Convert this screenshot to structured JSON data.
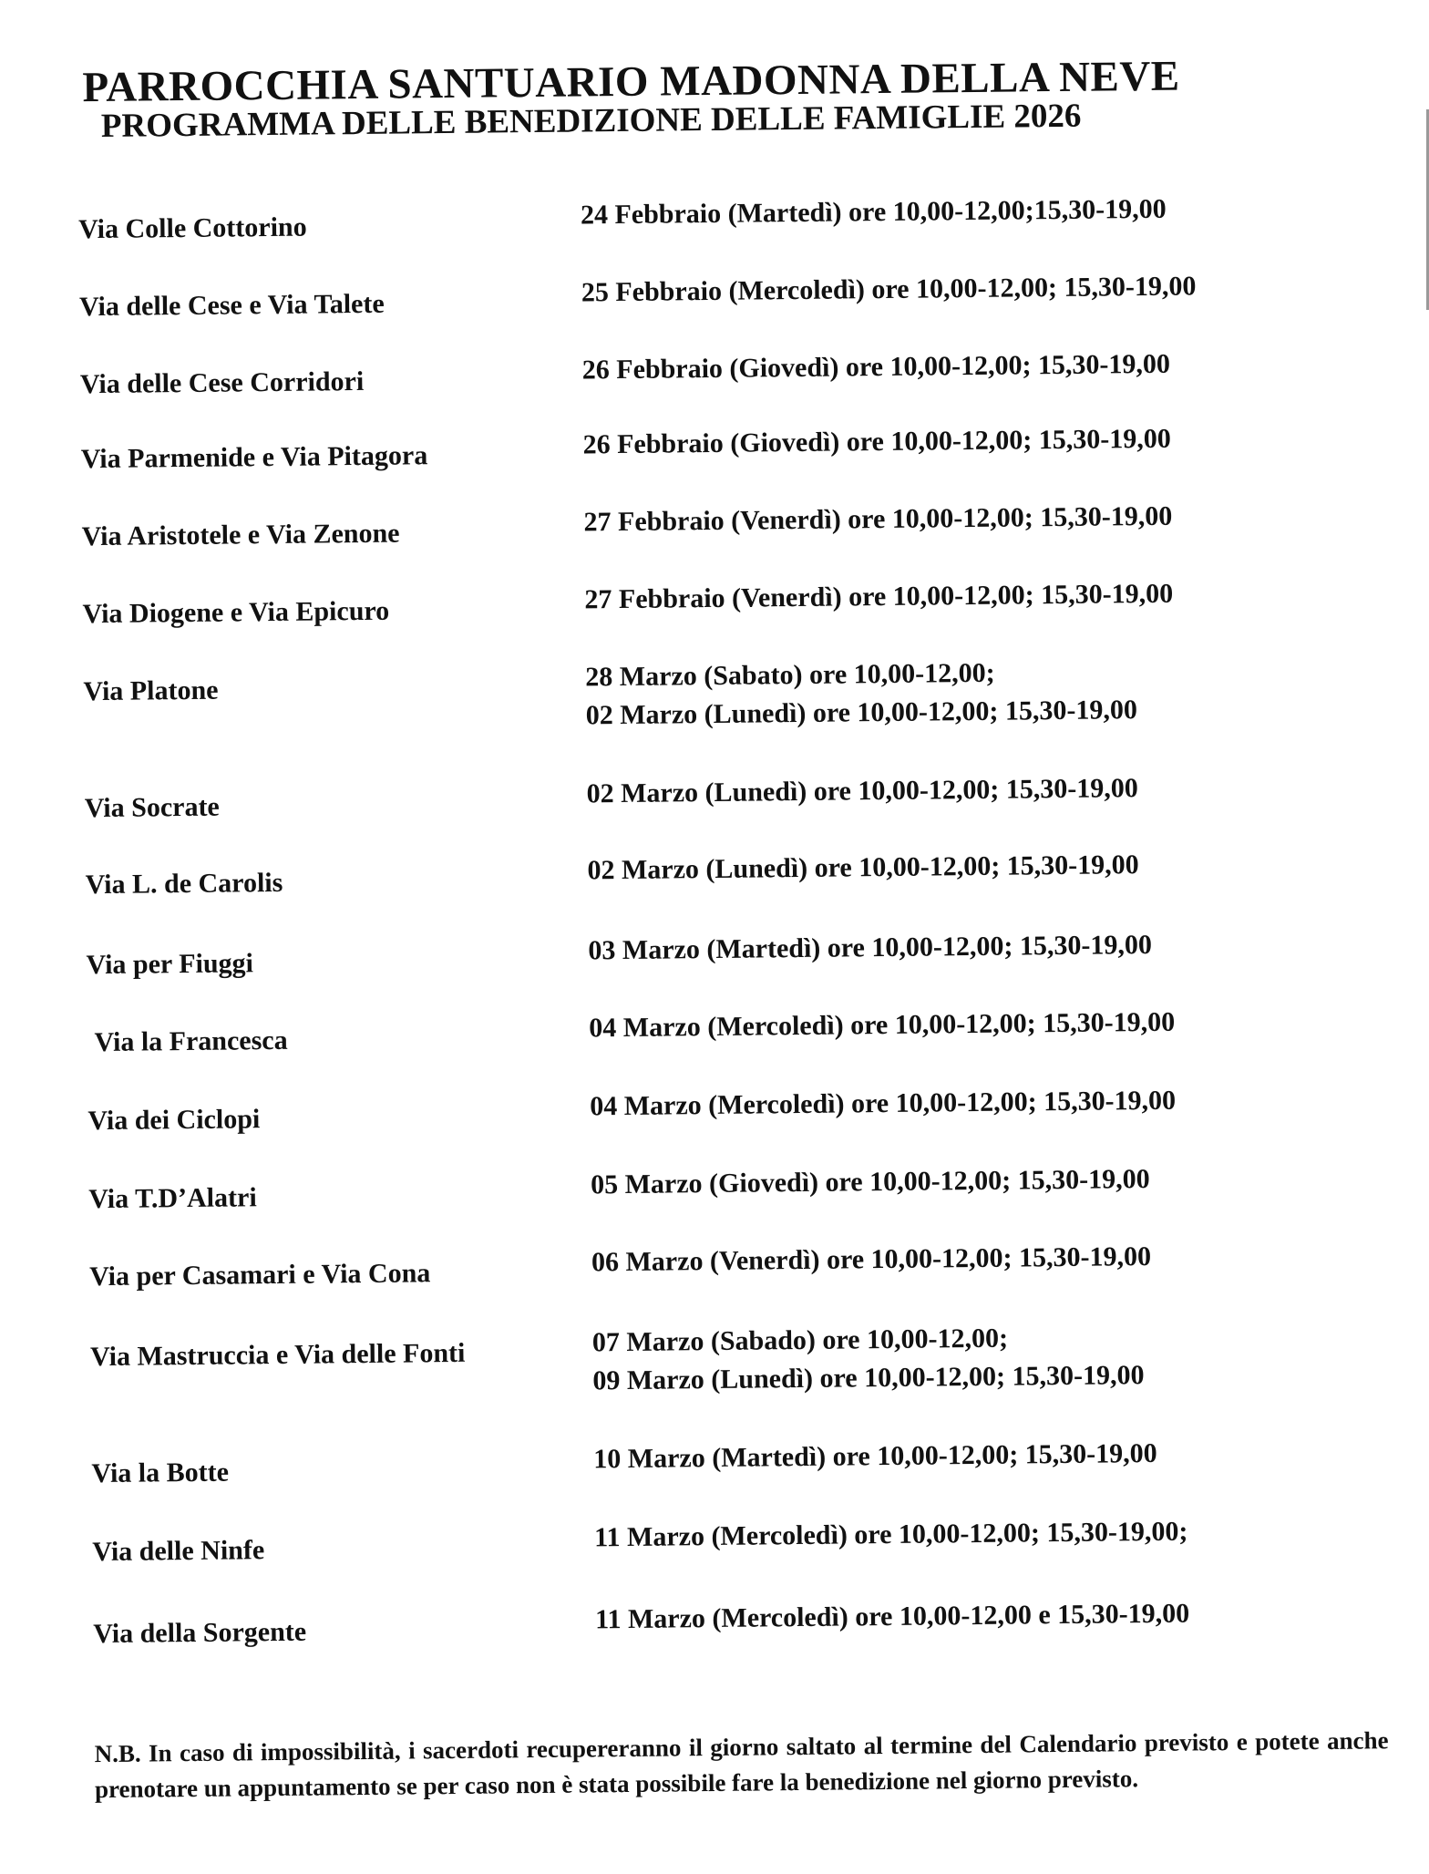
{
  "header": {
    "title": "PARROCCHIA SANTUARIO MADONNA DELLA NEVE",
    "subtitle": "PROGRAMMA DELLE BENEDIZIONE DELLE FAMIGLIE 2026"
  },
  "schedule": [
    {
      "street": "Via Colle Cottorino",
      "times": [
        "24 Febbraio (Martedì) ore 10,00-12,00;15,30-19,00"
      ]
    },
    {
      "street": "Via delle Cese e Via Talete",
      "times": [
        "25 Febbraio (Mercoledì) ore 10,00-12,00; 15,30-19,00"
      ]
    },
    {
      "street": "Via delle Cese Corridori",
      "times": [
        "26 Febbraio (Giovedì) ore 10,00-12,00; 15,30-19,00"
      ]
    },
    {
      "street": "Via Parmenide e Via Pitagora",
      "times": [
        "26 Febbraio (Giovedì) ore 10,00-12,00; 15,30-19,00"
      ]
    },
    {
      "street": "Via Aristotele e Via Zenone",
      "times": [
        "27 Febbraio (Venerdì) ore 10,00-12,00; 15,30-19,00"
      ]
    },
    {
      "street": "Via Diogene e Via Epicuro",
      "times": [
        "27 Febbraio (Venerdì) ore 10,00-12,00; 15,30-19,00"
      ]
    },
    {
      "street": "Via Platone",
      "times": [
        "28 Marzo (Sabato) ore 10,00-12,00;",
        "02 Marzo (Lunedì) ore 10,00-12,00; 15,30-19,00"
      ]
    },
    {
      "street": "Via Socrate",
      "times": [
        "02 Marzo (Lunedì) ore 10,00-12,00; 15,30-19,00"
      ]
    },
    {
      "street": "Via L. de Carolis",
      "times": [
        "02 Marzo (Lunedì) ore 10,00-12,00; 15,30-19,00"
      ]
    },
    {
      "street": "Via per Fiuggi",
      "times": [
        "03 Marzo (Martedì) ore 10,00-12,00; 15,30-19,00"
      ]
    },
    {
      "street": "Via la Francesca",
      "times": [
        "04 Marzo (Mercoledì) ore 10,00-12,00; 15,30-19,00"
      ]
    },
    {
      "street": "Via dei Ciclopi",
      "times": [
        "04 Marzo (Mercoledì) ore 10,00-12,00; 15,30-19,00"
      ]
    },
    {
      "street": "Via T.D’Alatri",
      "times": [
        "05 Marzo (Giovedì) ore 10,00-12,00; 15,30-19,00"
      ]
    },
    {
      "street": "Via per Casamari e Via Cona",
      "times": [
        "06 Marzo (Venerdì) ore 10,00-12,00; 15,30-19,00"
      ]
    },
    {
      "street": "Via Mastruccia e Via delle Fonti",
      "times": [
        "07 Marzo (Sabado) ore 10,00-12,00;",
        "09 Marzo (Lunedì) ore 10,00-12,00; 15,30-19,00"
      ]
    },
    {
      "street": "Via la Botte",
      "times": [
        "10 Marzo (Martedì) ore 10,00-12,00; 15,30-19,00"
      ]
    },
    {
      "street": "Via delle Ninfe",
      "times": [
        "11 Marzo (Mercoledì) ore 10,00-12,00; 15,30-19,00;"
      ]
    },
    {
      "street": "Via della Sorgente",
      "times": [
        "11 Marzo (Mercoledì) ore 10,00-12,00 e 15,30-19,00"
      ]
    }
  ],
  "note": "N.B. In caso di impossibilità, i sacerdoti recupereranno il giorno saltato al termine del Calendario previsto e potete anche prenotare un appuntamento se per caso non è stata possibile fare la benedizione nel giorno previsto."
}
